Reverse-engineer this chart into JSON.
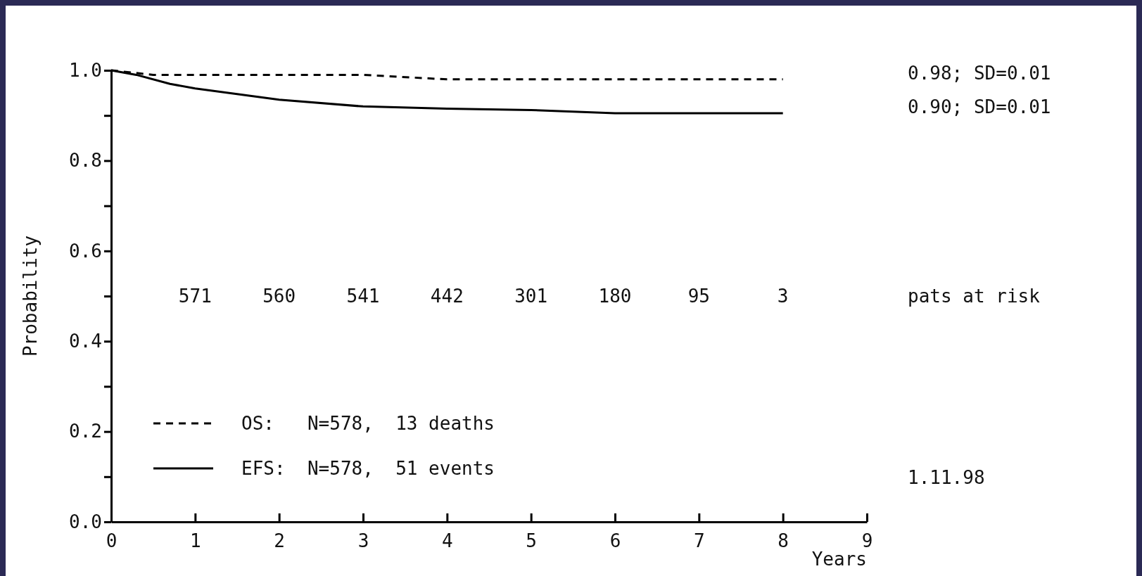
{
  "chart_data": {
    "type": "line",
    "xlabel": "Years",
    "ylabel": "Probability",
    "xlim": [
      0,
      9
    ],
    "ylim": [
      0,
      1
    ],
    "xticks": [
      0,
      1,
      2,
      3,
      4,
      5,
      6,
      7,
      8,
      9
    ],
    "yticks": [
      {
        "value": 0,
        "label": "0.0"
      },
      {
        "value": 0.1,
        "label": null
      },
      {
        "value": 0.2,
        "label": "0.2"
      },
      {
        "value": 0.3,
        "label": null
      },
      {
        "value": 0.4,
        "label": "0.4"
      },
      {
        "value": 0.5,
        "label": null
      },
      {
        "value": 0.6,
        "label": "0.6"
      },
      {
        "value": 0.7,
        "label": null
      },
      {
        "value": 0.8,
        "label": "0.8"
      },
      {
        "value": 0.9,
        "label": null
      },
      {
        "value": 1,
        "label": "1.0"
      }
    ],
    "series": [
      {
        "name": "OS:   N=578,  13 deaths",
        "color": "#000000",
        "line_style": "dashed",
        "x": [
          0,
          0.5,
          3,
          4,
          8
        ],
        "values": [
          1,
          0.99,
          0.99,
          0.98,
          0.98
        ]
      },
      {
        "name": "EFS:  N=578,  51 events",
        "color": "#000000",
        "line_style": "solid",
        "x": [
          0,
          0.3,
          0.7,
          1,
          2,
          3,
          4,
          5,
          6,
          8
        ],
        "values": [
          1,
          0.99,
          0.97,
          0.96,
          0.935,
          0.92,
          0.915,
          0.912,
          0.905,
          0.905
        ]
      }
    ],
    "legend": "bottom left",
    "grid": false,
    "marker": "none",
    "annotations": [
      "0.98; SD=0.01",
      "0.90; SD=0.01",
      "571",
      "560",
      "541",
      "442",
      "301",
      "180",
      "95",
      "3",
      "pats at risk",
      "1.11.98"
    ]
  }
}
